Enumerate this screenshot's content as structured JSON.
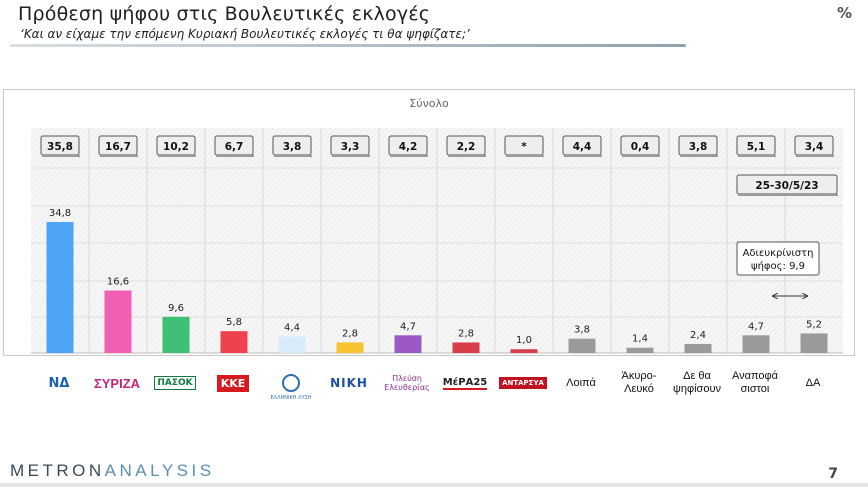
{
  "header": {
    "title": "Πρόθεση ψήφου στις Βουλευτικές εκλογές",
    "subtitle": "‘Και αν είχαμε την επόμενη Κυριακή Βουλευτικές εκλογές τι θα ψηφίζατε;’",
    "unit": "%"
  },
  "chart_data": {
    "type": "bar",
    "title": "Σύνολο",
    "categories": [
      "ΝΔ",
      "ΣΥΡΙΖΑ",
      "ΠΑΣΟΚ",
      "ΚΚΕ",
      "ΕΛΛΗΝΙΚΗ ΛΥΣΗ",
      "ΝΙΚΗ",
      "Πλεύση Ελευθερίας",
      "ΜέΡΑ25",
      "ΑΝΤΑΡΣΥΑ",
      "Λοιπά",
      "Άκυρο-Λευκό",
      "Δε θα ψηφίσουν",
      "Αναποφάσιστοι",
      "ΔΑ"
    ],
    "values": [
      34.8,
      16.6,
      9.6,
      5.8,
      4.4,
      2.8,
      4.7,
      2.8,
      1.0,
      3.8,
      1.4,
      2.4,
      4.7,
      5.2
    ],
    "value_labels": [
      "34,8",
      "16,6",
      "9,6",
      "5,8",
      "4,4",
      "2,8",
      "4,7",
      "2,8",
      "1,0",
      "3,8",
      "1,4",
      "2,4",
      "4,7",
      "5,2"
    ],
    "previous_labels": [
      "35,8",
      "16,7",
      "10,2",
      "6,7",
      "3,8",
      "3,3",
      "4,2",
      "2,2",
      "*",
      "4,4",
      "0,4",
      "3,8",
      "5,1",
      "3,4"
    ],
    "colors": [
      "#4da3f5",
      "#f05fb4",
      "#3fbf74",
      "#f0424e",
      "#d9ebfa",
      "#f7c331",
      "#9b59c6",
      "#d83e48",
      "#d83e48",
      "#9a9a9a",
      "#9a9a9a",
      "#9a9a9a",
      "#9a9a9a",
      "#9a9a9a"
    ],
    "ylim": [
      0,
      40
    ],
    "previous_period_label": "25-30/5/23",
    "annotation": "Αδιευκρίνιστη ψήφος: 9,9",
    "grid": true
  },
  "logos": [
    {
      "icon": "nd-logo",
      "text": "ΝΔ"
    },
    {
      "icon": "syriza-logo",
      "text": "ΣΥΡΙΖΑ"
    },
    {
      "icon": "pasok-logo",
      "text": "ΠΑΣΟΚ"
    },
    {
      "icon": "kke-logo",
      "text": "ΚΚΕ"
    },
    {
      "icon": "elliniki-lysi-logo",
      "text": "ΕΛΛΗΝΙΚΗ ΛΥΣΗ"
    },
    {
      "icon": "niki-logo",
      "text": "ΝΙΚΗ"
    },
    {
      "icon": "plefsi-logo",
      "text": "Πλεύση Ελευθερίας"
    },
    {
      "icon": "mera25-logo",
      "text": "ΜέΡΑ25"
    },
    {
      "icon": "antarsya-logo",
      "text": "ΑΝΤΑΡΣΥΑ"
    }
  ],
  "text_categories": [
    "Λοιπά",
    "Άκυρο-\nΛευκό",
    "Δε θα\nψηφίσουν",
    "Αναποφά\nσιστοι",
    "ΔΑ"
  ],
  "footer": {
    "brand_a": "METRON",
    "brand_b": "ANALYSIS",
    "page": "7"
  }
}
